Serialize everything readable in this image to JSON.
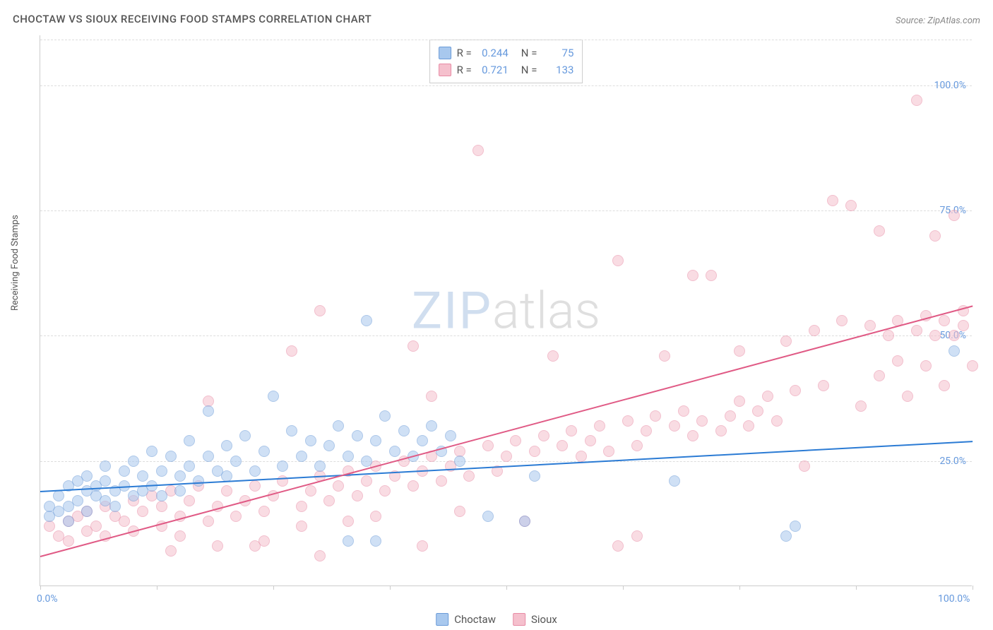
{
  "title": "CHOCTAW VS SIOUX RECEIVING FOOD STAMPS CORRELATION CHART",
  "source": "Source: ZipAtlas.com",
  "y_axis_label": "Receiving Food Stamps",
  "watermark": {
    "zip": "ZIP",
    "atlas": "atlas"
  },
  "chart": {
    "type": "scatter",
    "xlim": [
      0,
      100
    ],
    "ylim": [
      0,
      110
    ],
    "y_ticks": [
      25,
      50,
      75,
      100
    ],
    "y_tick_labels": [
      "25.0%",
      "50.0%",
      "75.0%",
      "100.0%"
    ],
    "x_ticks": [
      0,
      12.5,
      25,
      37.5,
      50,
      62.5,
      75,
      87.5,
      100
    ],
    "x_tick_labels_shown": {
      "0": "0.0%",
      "100": "100.0%"
    },
    "grid_color": "#dddddd",
    "axis_color": "#cccccc",
    "background_color": "#ffffff",
    "tick_label_color": "#6699dd",
    "point_radius": 8,
    "point_opacity": 0.55,
    "line_width": 2
  },
  "series": {
    "choctaw": {
      "label": "Choctaw",
      "color_fill": "#a8c8ee",
      "color_stroke": "#6b9bd8",
      "line_color": "#2b7bd4",
      "R": "0.244",
      "N": "75",
      "trend": {
        "x1": 0,
        "y1": 19,
        "x2": 100,
        "y2": 29
      },
      "points": [
        [
          1,
          14
        ],
        [
          1,
          16
        ],
        [
          2,
          18
        ],
        [
          2,
          15
        ],
        [
          3,
          13
        ],
        [
          3,
          20
        ],
        [
          3,
          16
        ],
        [
          4,
          21
        ],
        [
          4,
          17
        ],
        [
          5,
          19
        ],
        [
          5,
          22
        ],
        [
          5,
          15
        ],
        [
          6,
          20
        ],
        [
          6,
          18
        ],
        [
          7,
          24
        ],
        [
          7,
          17
        ],
        [
          7,
          21
        ],
        [
          8,
          19
        ],
        [
          8,
          16
        ],
        [
          9,
          23
        ],
        [
          9,
          20
        ],
        [
          10,
          18
        ],
        [
          10,
          25
        ],
        [
          11,
          22
        ],
        [
          11,
          19
        ],
        [
          12,
          27
        ],
        [
          12,
          20
        ],
        [
          13,
          23
        ],
        [
          13,
          18
        ],
        [
          14,
          26
        ],
        [
          15,
          22
        ],
        [
          15,
          19
        ],
        [
          16,
          29
        ],
        [
          16,
          24
        ],
        [
          17,
          21
        ],
        [
          18,
          35
        ],
        [
          18,
          26
        ],
        [
          19,
          23
        ],
        [
          20,
          28
        ],
        [
          20,
          22
        ],
        [
          21,
          25
        ],
        [
          22,
          30
        ],
        [
          23,
          23
        ],
        [
          24,
          27
        ],
        [
          25,
          38
        ],
        [
          26,
          24
        ],
        [
          27,
          31
        ],
        [
          28,
          26
        ],
        [
          29,
          29
        ],
        [
          30,
          24
        ],
        [
          31,
          28
        ],
        [
          32,
          32
        ],
        [
          33,
          26
        ],
        [
          34,
          30
        ],
        [
          35,
          25
        ],
        [
          36,
          29
        ],
        [
          37,
          34
        ],
        [
          38,
          27
        ],
        [
          39,
          31
        ],
        [
          40,
          26
        ],
        [
          41,
          29
        ],
        [
          42,
          32
        ],
        [
          43,
          27
        ],
        [
          44,
          30
        ],
        [
          45,
          25
        ],
        [
          35,
          53
        ],
        [
          33,
          9
        ],
        [
          36,
          9
        ],
        [
          48,
          14
        ],
        [
          53,
          22
        ],
        [
          68,
          21
        ],
        [
          80,
          10
        ],
        [
          81,
          12
        ],
        [
          98,
          47
        ],
        [
          52,
          13
        ]
      ]
    },
    "sioux": {
      "label": "Sioux",
      "color_fill": "#f5c0cd",
      "color_stroke": "#e88ba5",
      "line_color": "#e05a85",
      "R": "0.721",
      "N": "133",
      "trend": {
        "x1": 0,
        "y1": 6,
        "x2": 100,
        "y2": 56
      },
      "points": [
        [
          1,
          12
        ],
        [
          2,
          10
        ],
        [
          3,
          13
        ],
        [
          3,
          9
        ],
        [
          4,
          14
        ],
        [
          5,
          11
        ],
        [
          5,
          15
        ],
        [
          6,
          12
        ],
        [
          7,
          16
        ],
        [
          7,
          10
        ],
        [
          8,
          14
        ],
        [
          9,
          13
        ],
        [
          10,
          17
        ],
        [
          10,
          11
        ],
        [
          11,
          15
        ],
        [
          12,
          18
        ],
        [
          13,
          12
        ],
        [
          13,
          16
        ],
        [
          14,
          19
        ],
        [
          15,
          14
        ],
        [
          15,
          10
        ],
        [
          16,
          17
        ],
        [
          17,
          20
        ],
        [
          18,
          13
        ],
        [
          18,
          37
        ],
        [
          19,
          16
        ],
        [
          20,
          19
        ],
        [
          21,
          14
        ],
        [
          22,
          17
        ],
        [
          23,
          20
        ],
        [
          24,
          15
        ],
        [
          24,
          9
        ],
        [
          25,
          18
        ],
        [
          26,
          21
        ],
        [
          27,
          47
        ],
        [
          28,
          16
        ],
        [
          28,
          12
        ],
        [
          29,
          19
        ],
        [
          30,
          22
        ],
        [
          30,
          55
        ],
        [
          31,
          17
        ],
        [
          32,
          20
        ],
        [
          33,
          23
        ],
        [
          33,
          13
        ],
        [
          34,
          18
        ],
        [
          35,
          21
        ],
        [
          36,
          24
        ],
        [
          36,
          14
        ],
        [
          37,
          19
        ],
        [
          38,
          22
        ],
        [
          39,
          25
        ],
        [
          40,
          20
        ],
        [
          40,
          48
        ],
        [
          41,
          23
        ],
        [
          42,
          26
        ],
        [
          42,
          38
        ],
        [
          43,
          21
        ],
        [
          44,
          24
        ],
        [
          45,
          27
        ],
        [
          45,
          15
        ],
        [
          46,
          22
        ],
        [
          47,
          87
        ],
        [
          48,
          28
        ],
        [
          49,
          23
        ],
        [
          50,
          26
        ],
        [
          51,
          29
        ],
        [
          52,
          13
        ],
        [
          53,
          27
        ],
        [
          54,
          30
        ],
        [
          55,
          46
        ],
        [
          56,
          28
        ],
        [
          57,
          31
        ],
        [
          58,
          26
        ],
        [
          59,
          29
        ],
        [
          60,
          32
        ],
        [
          61,
          27
        ],
        [
          62,
          65
        ],
        [
          63,
          33
        ],
        [
          64,
          28
        ],
        [
          64,
          10
        ],
        [
          65,
          31
        ],
        [
          66,
          34
        ],
        [
          67,
          46
        ],
        [
          68,
          32
        ],
        [
          69,
          35
        ],
        [
          70,
          30
        ],
        [
          70,
          62
        ],
        [
          71,
          33
        ],
        [
          72,
          62
        ],
        [
          73,
          31
        ],
        [
          74,
          34
        ],
        [
          75,
          37
        ],
        [
          75,
          47
        ],
        [
          76,
          32
        ],
        [
          77,
          35
        ],
        [
          78,
          38
        ],
        [
          79,
          33
        ],
        [
          80,
          49
        ],
        [
          81,
          39
        ],
        [
          82,
          24
        ],
        [
          83,
          51
        ],
        [
          84,
          40
        ],
        [
          85,
          77
        ],
        [
          86,
          53
        ],
        [
          87,
          76
        ],
        [
          88,
          36
        ],
        [
          89,
          52
        ],
        [
          90,
          71
        ],
        [
          90,
          42
        ],
        [
          91,
          50
        ],
        [
          92,
          53
        ],
        [
          92,
          45
        ],
        [
          93,
          38
        ],
        [
          94,
          51
        ],
        [
          94,
          97
        ],
        [
          95,
          54
        ],
        [
          95,
          44
        ],
        [
          96,
          70
        ],
        [
          96,
          50
        ],
        [
          97,
          53
        ],
        [
          97,
          40
        ],
        [
          98,
          50
        ],
        [
          98,
          74
        ],
        [
          99,
          52
        ],
        [
          99,
          55
        ],
        [
          100,
          44
        ],
        [
          62,
          8
        ],
        [
          23,
          8
        ],
        [
          14,
          7
        ],
        [
          30,
          6
        ],
        [
          19,
          8
        ],
        [
          41,
          8
        ]
      ]
    }
  },
  "stats_box": {
    "rows": [
      {
        "swatch": "choctaw",
        "r_label": "R =",
        "n_label": "N ="
      },
      {
        "swatch": "sioux",
        "r_label": "R =",
        "n_label": "N ="
      }
    ]
  },
  "bottom_legend": [
    {
      "key": "choctaw"
    },
    {
      "key": "sioux"
    }
  ]
}
